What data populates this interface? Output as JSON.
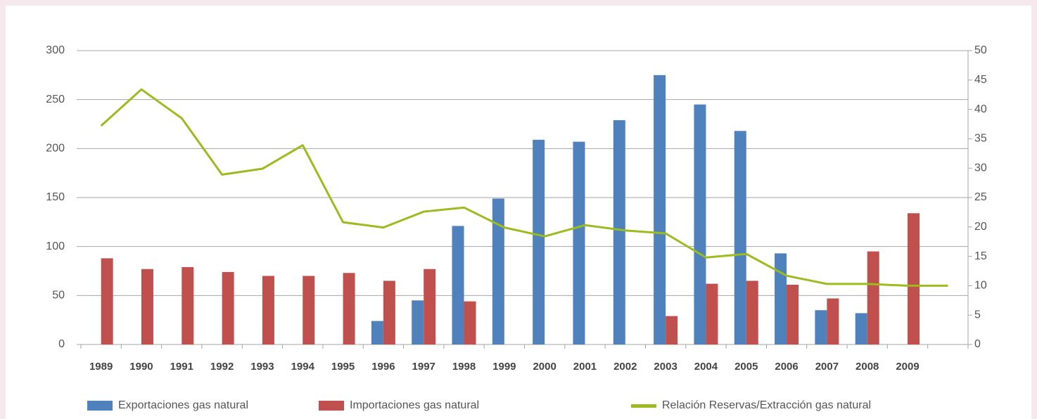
{
  "chart_data": {
    "type": "bar",
    "categories": [
      "1989",
      "1990",
      "1991",
      "1992",
      "1993",
      "1994",
      "1995",
      "1996",
      "1997",
      "1998",
      "1999",
      "2000",
      "2001",
      "2002",
      "2003",
      "2004",
      "2005",
      "2006",
      "2007",
      "2008",
      "2009",
      null
    ],
    "series": [
      {
        "name": "Exportaciones gas natural",
        "color": "#4f81bd",
        "type": "bar",
        "values": [
          null,
          null,
          null,
          null,
          null,
          null,
          null,
          24,
          45,
          121,
          149,
          209,
          207,
          229,
          275,
          245,
          218,
          93,
          35,
          32,
          null,
          null
        ]
      },
      {
        "name": "Importaciones gas natural",
        "color": "#c0504d",
        "type": "bar",
        "values": [
          88,
          77,
          79,
          74,
          70,
          70,
          73,
          65,
          77,
          44,
          null,
          null,
          null,
          null,
          29,
          62,
          65,
          61,
          47,
          95,
          134,
          null
        ]
      },
      {
        "name": "Relación Reservas/Extracción gas natural",
        "color": "#9bbb1f",
        "type": "line",
        "axis": "y2",
        "values": [
          37.2,
          43.4,
          38.5,
          28.9,
          29.9,
          33.9,
          20.8,
          19.9,
          22.6,
          23.3,
          19.9,
          18.4,
          20.3,
          19.4,
          18.9,
          14.8,
          15.4,
          11.7,
          10.3,
          10.3,
          10.0,
          10.0
        ]
      }
    ],
    "ylim": [
      0,
      300
    ],
    "yticks": [
      0,
      50,
      100,
      150,
      200,
      250,
      300
    ],
    "y2lim": [
      0,
      50
    ],
    "y2ticks": [
      0,
      5,
      10,
      15,
      20,
      25,
      30,
      35,
      40,
      45,
      50
    ],
    "grid": true,
    "legend": "bottom"
  }
}
